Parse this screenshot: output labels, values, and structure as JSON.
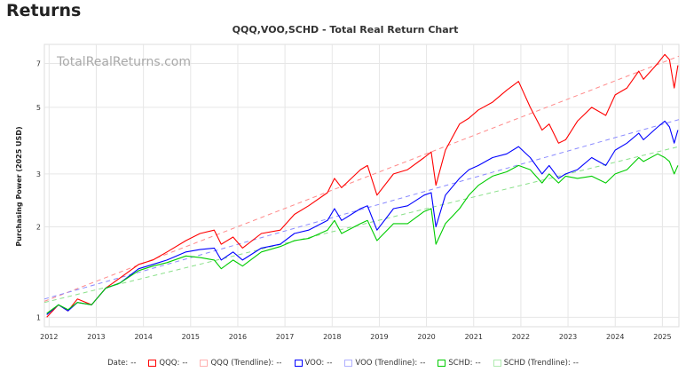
{
  "page": {
    "heading": "Returns"
  },
  "chart_data": {
    "type": "line",
    "title": "QQQ,VOO,SCHD - Total Real Return Chart",
    "watermark": "TotalRealReturns.com",
    "ylabel": "Purchasing Power (2025 USD)",
    "xlabel": "",
    "yscale": "log",
    "ylim": [
      0.93,
      8.1
    ],
    "xlim": [
      2011.9,
      2025.35
    ],
    "y_ticks": [
      1,
      2,
      3,
      5,
      7
    ],
    "x_ticks": [
      2012,
      2013,
      2014,
      2015,
      2016,
      2017,
      2018,
      2019,
      2020,
      2021,
      2022,
      2023,
      2024,
      2025
    ],
    "grid": true,
    "legend_position": "bottom",
    "series": [
      {
        "name": "QQQ",
        "color": "#ff0000",
        "style": "solid",
        "x": [
          2011.95,
          2012.2,
          2012.4,
          2012.6,
          2012.9,
          2013.2,
          2013.5,
          2013.9,
          2014.2,
          2014.5,
          2014.9,
          2015.2,
          2015.5,
          2015.65,
          2015.9,
          2016.1,
          2016.5,
          2016.9,
          2017.2,
          2017.5,
          2017.9,
          2018.05,
          2018.2,
          2018.6,
          2018.75,
          2018.95,
          2019.3,
          2019.6,
          2019.95,
          2020.1,
          2020.2,
          2020.4,
          2020.7,
          2020.9,
          2021.1,
          2021.4,
          2021.7,
          2021.95,
          2022.2,
          2022.45,
          2022.6,
          2022.8,
          2022.95,
          2023.2,
          2023.5,
          2023.8,
          2024.0,
          2024.25,
          2024.5,
          2024.6,
          2024.9,
          2025.05,
          2025.15,
          2025.25,
          2025.33
        ],
        "y": [
          1.0,
          1.1,
          1.05,
          1.15,
          1.1,
          1.25,
          1.35,
          1.5,
          1.55,
          1.65,
          1.8,
          1.9,
          1.95,
          1.75,
          1.85,
          1.7,
          1.9,
          1.95,
          2.2,
          2.35,
          2.6,
          2.9,
          2.7,
          3.1,
          3.2,
          2.55,
          3.0,
          3.1,
          3.4,
          3.55,
          2.75,
          3.6,
          4.4,
          4.6,
          4.9,
          5.2,
          5.7,
          6.1,
          5.0,
          4.2,
          4.4,
          3.8,
          3.9,
          4.5,
          5.0,
          4.7,
          5.5,
          5.8,
          6.6,
          6.2,
          7.0,
          7.5,
          7.2,
          5.8,
          6.9
        ]
      },
      {
        "name": "QQQ (Trendline)",
        "color": "#ff8a8a",
        "style": "dashed",
        "x": [
          2011.9,
          2025.35
        ],
        "y": [
          1.13,
          7.4
        ]
      },
      {
        "name": "VOO",
        "color": "#0000ff",
        "style": "solid",
        "x": [
          2011.95,
          2012.2,
          2012.4,
          2012.6,
          2012.9,
          2013.2,
          2013.5,
          2013.9,
          2014.2,
          2014.5,
          2014.9,
          2015.2,
          2015.5,
          2015.65,
          2015.9,
          2016.1,
          2016.5,
          2016.9,
          2017.2,
          2017.5,
          2017.9,
          2018.05,
          2018.2,
          2018.6,
          2018.75,
          2018.95,
          2019.3,
          2019.6,
          2019.95,
          2020.1,
          2020.2,
          2020.4,
          2020.7,
          2020.9,
          2021.1,
          2021.4,
          2021.7,
          2021.95,
          2022.2,
          2022.45,
          2022.6,
          2022.8,
          2022.95,
          2023.2,
          2023.5,
          2023.8,
          2024.0,
          2024.25,
          2024.5,
          2024.6,
          2024.9,
          2025.05,
          2025.15,
          2025.25,
          2025.33
        ],
        "y": [
          1.02,
          1.1,
          1.05,
          1.12,
          1.1,
          1.25,
          1.3,
          1.45,
          1.5,
          1.55,
          1.65,
          1.68,
          1.7,
          1.55,
          1.65,
          1.55,
          1.7,
          1.75,
          1.9,
          1.95,
          2.1,
          2.3,
          2.1,
          2.3,
          2.35,
          1.95,
          2.3,
          2.35,
          2.55,
          2.6,
          2.0,
          2.55,
          2.9,
          3.1,
          3.2,
          3.4,
          3.5,
          3.7,
          3.4,
          3.0,
          3.2,
          2.9,
          3.0,
          3.1,
          3.4,
          3.2,
          3.6,
          3.8,
          4.1,
          3.9,
          4.3,
          4.5,
          4.3,
          3.8,
          4.2
        ]
      },
      {
        "name": "VOO (Trendline)",
        "color": "#8a8aff",
        "style": "dashed",
        "x": [
          2011.9,
          2025.35
        ],
        "y": [
          1.15,
          4.55
        ]
      },
      {
        "name": "SCHD",
        "color": "#00cc00",
        "style": "solid",
        "x": [
          2011.95,
          2012.2,
          2012.4,
          2012.6,
          2012.9,
          2013.2,
          2013.5,
          2013.9,
          2014.2,
          2014.5,
          2014.9,
          2015.2,
          2015.5,
          2015.65,
          2015.9,
          2016.1,
          2016.5,
          2016.9,
          2017.2,
          2017.5,
          2017.9,
          2018.05,
          2018.2,
          2018.6,
          2018.75,
          2018.95,
          2019.3,
          2019.6,
          2019.95,
          2020.1,
          2020.2,
          2020.4,
          2020.7,
          2020.9,
          2021.1,
          2021.4,
          2021.7,
          2021.95,
          2022.2,
          2022.45,
          2022.6,
          2022.8,
          2022.95,
          2023.2,
          2023.5,
          2023.8,
          2024.0,
          2024.25,
          2024.5,
          2024.6,
          2024.9,
          2025.05,
          2025.15,
          2025.25,
          2025.33
        ],
        "y": [
          1.03,
          1.1,
          1.06,
          1.12,
          1.1,
          1.25,
          1.3,
          1.43,
          1.48,
          1.52,
          1.6,
          1.58,
          1.55,
          1.45,
          1.55,
          1.48,
          1.65,
          1.72,
          1.8,
          1.83,
          1.95,
          2.1,
          1.9,
          2.05,
          2.1,
          1.8,
          2.05,
          2.05,
          2.25,
          2.3,
          1.75,
          2.05,
          2.3,
          2.55,
          2.75,
          2.95,
          3.05,
          3.2,
          3.1,
          2.8,
          3.0,
          2.8,
          2.95,
          2.9,
          2.95,
          2.8,
          3.0,
          3.1,
          3.4,
          3.3,
          3.5,
          3.4,
          3.3,
          3.0,
          3.2
        ]
      },
      {
        "name": "SCHD (Trendline)",
        "color": "#8ae08a",
        "style": "dashed",
        "x": [
          2011.9,
          2025.35
        ],
        "y": [
          1.12,
          3.7
        ]
      }
    ]
  },
  "legend": {
    "date_label": "Date:",
    "date_value": "--",
    "items": [
      {
        "label": "QQQ:",
        "value": "--",
        "color": "#ff0000"
      },
      {
        "label": "QQQ (Trendline):",
        "value": "--",
        "color": "#ffb0b0"
      },
      {
        "label": "VOO:",
        "value": "--",
        "color": "#0000ff"
      },
      {
        "label": "VOO (Trendline):",
        "value": "--",
        "color": "#b0b0ff"
      },
      {
        "label": "SCHD:",
        "value": "--",
        "color": "#00cc00"
      },
      {
        "label": "SCHD (Trendline):",
        "value": "--",
        "color": "#b0eab0"
      }
    ]
  }
}
